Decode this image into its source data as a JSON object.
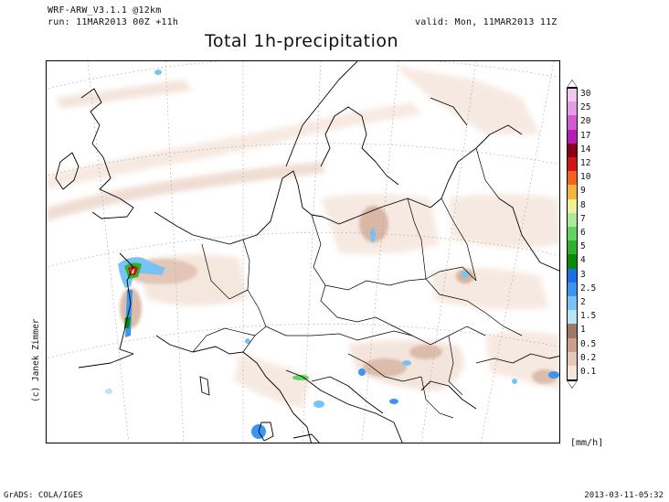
{
  "header": {
    "model": "WRF-ARW_V3.1.1 @12km",
    "run": "run: 11MAR2013 00Z +11h",
    "valid": "valid: Mon, 11MAR2013 11Z",
    "title": "Total 1h-precipitation"
  },
  "author": "(c) Janek Zimmer",
  "legend": {
    "unit": "[mm/h]",
    "levels": [
      {
        "label": "30",
        "color": "#f2c8f2"
      },
      {
        "label": "25",
        "color": "#e69be6"
      },
      {
        "label": "20",
        "color": "#d25ad2"
      },
      {
        "label": "17",
        "color": "#b41eb4"
      },
      {
        "label": "14",
        "color": "#8c0014"
      },
      {
        "label": "12",
        "color": "#d21414"
      },
      {
        "label": "10",
        "color": "#f0641e"
      },
      {
        "label": "9",
        "color": "#f5b43c"
      },
      {
        "label": "8",
        "color": "#f0f096"
      },
      {
        "label": "7",
        "color": "#aaeb96"
      },
      {
        "label": "6",
        "color": "#64d264"
      },
      {
        "label": "5",
        "color": "#2db42d"
      },
      {
        "label": "4",
        "color": "#0a8c0a"
      },
      {
        "label": "3",
        "color": "#1e6ee6"
      },
      {
        "label": "2.5",
        "color": "#3c96f0"
      },
      {
        "label": "2",
        "color": "#78c3f5"
      },
      {
        "label": "1.5",
        "color": "#b4e6f8"
      },
      {
        "label": "1",
        "color": "#a07864"
      },
      {
        "label": "0.5",
        "color": "#c8a08c"
      },
      {
        "label": "0.2",
        "color": "#e6c8b9"
      },
      {
        "label": "0.1",
        "color": "#f5e6dc"
      }
    ]
  },
  "footer": {
    "left": "GrADS: COLA/IGES",
    "right": "2013-03-11-05:32"
  }
}
